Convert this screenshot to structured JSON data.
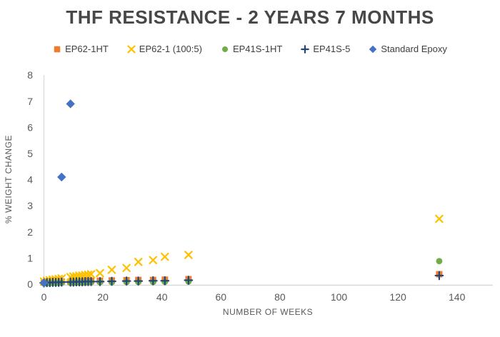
{
  "chart_data": {
    "type": "scatter",
    "title": "THF RESISTANCE - 2 YEARS 7 MONTHS",
    "xlabel": "NUMBER OF WEEKS",
    "ylabel": "% WEIGHT CHANGE",
    "xlim": [
      0,
      152
    ],
    "ylim": [
      0,
      8
    ],
    "xticks": [
      0,
      20,
      40,
      60,
      80,
      100,
      120,
      140
    ],
    "yticks": [
      0,
      1,
      2,
      3,
      4,
      5,
      6,
      7,
      8
    ],
    "grid": false,
    "legend_position": "top",
    "axis_color": "#d9d9d9",
    "tick_label_color": "#595959",
    "series": [
      {
        "name": "EP62-1HT",
        "marker": "square",
        "color": "#ED7D31",
        "points": [
          [
            0,
            0.07
          ],
          [
            1,
            0.08
          ],
          [
            2,
            0.08
          ],
          [
            3,
            0.09
          ],
          [
            4,
            0.09
          ],
          [
            5,
            0.1
          ],
          [
            6,
            0.1
          ],
          [
            9,
            0.1
          ],
          [
            10,
            0.11
          ],
          [
            11,
            0.11
          ],
          [
            12,
            0.12
          ],
          [
            13,
            0.12
          ],
          [
            14,
            0.13
          ],
          [
            15,
            0.13
          ],
          [
            16,
            0.13
          ],
          [
            19,
            0.13
          ],
          [
            23,
            0.14
          ],
          [
            28,
            0.15
          ],
          [
            32,
            0.16
          ],
          [
            37,
            0.16
          ],
          [
            41,
            0.17
          ],
          [
            49,
            0.19
          ],
          [
            134,
            0.38
          ]
        ]
      },
      {
        "name": "EP62-1 (100:5)",
        "marker": "x",
        "color": "#FFC000",
        "points": [
          [
            0,
            0.1
          ],
          [
            1,
            0.13
          ],
          [
            2,
            0.15
          ],
          [
            3,
            0.17
          ],
          [
            4,
            0.18
          ],
          [
            5,
            0.2
          ],
          [
            6,
            0.22
          ],
          [
            9,
            0.27
          ],
          [
            10,
            0.29
          ],
          [
            11,
            0.3
          ],
          [
            12,
            0.32
          ],
          [
            13,
            0.33
          ],
          [
            14,
            0.35
          ],
          [
            15,
            0.36
          ],
          [
            16,
            0.38
          ],
          [
            19,
            0.42
          ],
          [
            23,
            0.55
          ],
          [
            28,
            0.62
          ],
          [
            32,
            0.85
          ],
          [
            37,
            0.92
          ],
          [
            41,
            1.05
          ],
          [
            49,
            1.12
          ],
          [
            134,
            2.5
          ]
        ]
      },
      {
        "name": "EP41S-1HT",
        "marker": "circle",
        "color": "#70AD47",
        "points": [
          [
            0,
            0.03
          ],
          [
            1,
            0.03
          ],
          [
            2,
            0.04
          ],
          [
            3,
            0.04
          ],
          [
            4,
            0.04
          ],
          [
            5,
            0.05
          ],
          [
            6,
            0.05
          ],
          [
            9,
            0.05
          ],
          [
            10,
            0.05
          ],
          [
            11,
            0.06
          ],
          [
            12,
            0.06
          ],
          [
            13,
            0.06
          ],
          [
            14,
            0.06
          ],
          [
            15,
            0.07
          ],
          [
            16,
            0.07
          ],
          [
            19,
            0.07
          ],
          [
            23,
            0.07
          ],
          [
            28,
            0.08
          ],
          [
            32,
            0.08
          ],
          [
            37,
            0.08
          ],
          [
            41,
            0.09
          ],
          [
            49,
            0.1
          ],
          [
            134,
            0.88
          ]
        ]
      },
      {
        "name": "EP41S-5",
        "marker": "plus",
        "color": "#264478",
        "points": [
          [
            0,
            0.05
          ],
          [
            1,
            0.06
          ],
          [
            2,
            0.06
          ],
          [
            3,
            0.07
          ],
          [
            4,
            0.07
          ],
          [
            5,
            0.07
          ],
          [
            6,
            0.08
          ],
          [
            9,
            0.08
          ],
          [
            10,
            0.08
          ],
          [
            11,
            0.09
          ],
          [
            12,
            0.09
          ],
          [
            13,
            0.09
          ],
          [
            14,
            0.1
          ],
          [
            15,
            0.1
          ],
          [
            16,
            0.1
          ],
          [
            19,
            0.1
          ],
          [
            23,
            0.11
          ],
          [
            28,
            0.12
          ],
          [
            32,
            0.12
          ],
          [
            37,
            0.13
          ],
          [
            41,
            0.13
          ],
          [
            49,
            0.15
          ],
          [
            134,
            0.33
          ]
        ]
      },
      {
        "name": "Standard Epoxy",
        "marker": "diamond",
        "color": "#4472C4",
        "points": [
          [
            0,
            0.05
          ],
          [
            6,
            4.1
          ],
          [
            9,
            6.9
          ]
        ]
      }
    ]
  }
}
